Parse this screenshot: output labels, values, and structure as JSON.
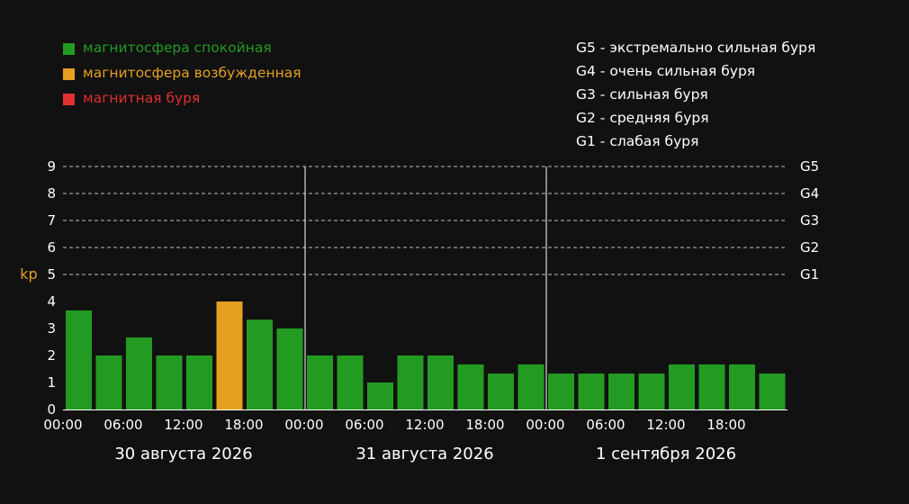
{
  "colors": {
    "background": "#111111",
    "quiet": "#239b23",
    "unsettled": "#e5a021",
    "storm": "#e03030",
    "axis_text": "#ffffff",
    "ylabel": "#e5a021",
    "grid": "#dddddd"
  },
  "legend": [
    {
      "label": "магнитосфера спокойная",
      "color_key": "quiet"
    },
    {
      "label": "магнитосфера возбужденная",
      "color_key": "unsettled"
    },
    {
      "label": "магнитная буря",
      "color_key": "storm"
    }
  ],
  "g_levels_legend": [
    "G5 - экстремально сильная буря",
    "G4 - очень сильная буря",
    "G3 - сильная буря",
    "G2 - средняя буря",
    "G1 - слабая буря"
  ],
  "chart_data": {
    "type": "bar",
    "ylabel": "kp",
    "ylim": [
      0,
      9
    ],
    "yticks": [
      0,
      1,
      2,
      3,
      4,
      5,
      6,
      7,
      8,
      9
    ],
    "grid": true,
    "grid_style": "dashed, levels 5–9",
    "right_axis_labels": [
      {
        "value": 9,
        "label": "G5"
      },
      {
        "value": 8,
        "label": "G4"
      },
      {
        "value": 7,
        "label": "G3"
      },
      {
        "value": 6,
        "label": "G2"
      },
      {
        "value": 5,
        "label": "G1"
      }
    ],
    "x_tick_labels": [
      "00:00",
      "06:00",
      "12:00",
      "18:00",
      "00:00",
      "06:00",
      "12:00",
      "18:00",
      "00:00",
      "06:00",
      "12:00",
      "18:00"
    ],
    "days": [
      "30 августа 2026",
      "31 августа 2026",
      "1 сентября 2026"
    ],
    "bars_per_day": 8,
    "values": [
      3.67,
      2,
      2.67,
      2,
      2,
      4,
      3.33,
      3,
      2,
      2,
      1,
      2,
      2,
      1.67,
      1.33,
      1.67,
      1.33,
      1.33,
      1.33,
      1.33,
      1.67,
      1.67,
      1.67,
      1.33
    ],
    "bar_status": [
      "quiet",
      "quiet",
      "quiet",
      "quiet",
      "quiet",
      "unsettled",
      "quiet",
      "quiet",
      "quiet",
      "quiet",
      "quiet",
      "quiet",
      "quiet",
      "quiet",
      "quiet",
      "quiet",
      "quiet",
      "quiet",
      "quiet",
      "quiet",
      "quiet",
      "quiet",
      "quiet",
      "quiet"
    ]
  }
}
